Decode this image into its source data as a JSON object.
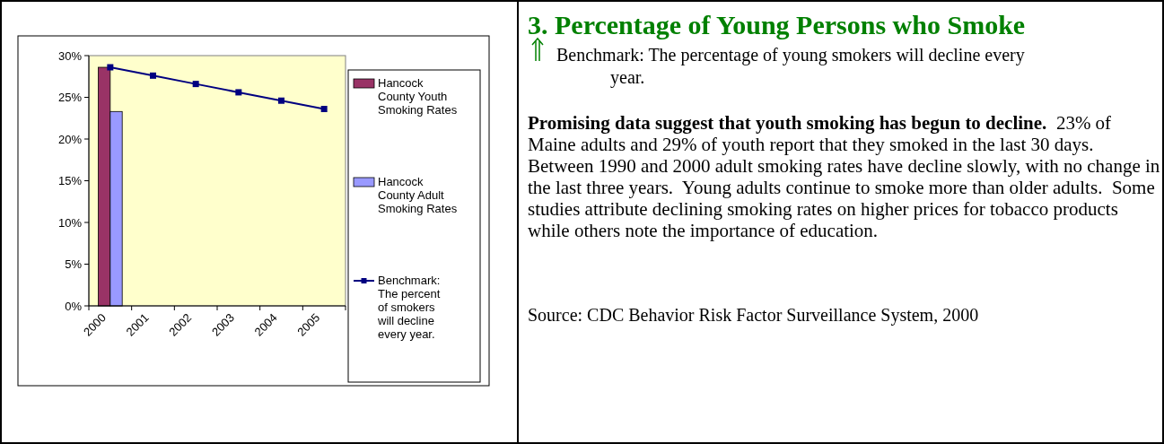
{
  "chart_data": {
    "type": "bar",
    "title": "3. Percentage of Young Persons who Smoke",
    "subtitle": "Benchmark: The percentage of young smokers will decline every year.",
    "categories": [
      "2000",
      "2001",
      "2002",
      "2003",
      "2004",
      "2005"
    ],
    "series": [
      {
        "name": "Hancock County Youth Smoking Rates",
        "color": "#993366",
        "values": [
          28.6,
          null,
          null,
          null,
          null,
          null
        ]
      },
      {
        "name": "Hancock County Adult Smoking Rates",
        "color": "#9999ff",
        "values": [
          23.3,
          null,
          null,
          null,
          null,
          null
        ]
      },
      {
        "name": "Benchmark: The percent of smokers will decline every year.",
        "type": "line",
        "color": "#000080",
        "marker": "square",
        "values": [
          28.6,
          27.6,
          26.6,
          25.6,
          24.6,
          23.6
        ]
      }
    ],
    "ylim": [
      0,
      30
    ],
    "yticks": [
      {
        "value": 0,
        "label": "0%"
      },
      {
        "value": 5,
        "label": "5%"
      },
      {
        "value": 10,
        "label": "10%"
      },
      {
        "value": 15,
        "label": "15%"
      },
      {
        "value": 20,
        "label": "20%"
      },
      {
        "value": 25,
        "label": "25%"
      },
      {
        "value": 30,
        "label": "30%"
      }
    ],
    "grid": false,
    "legend": "right",
    "annotations": [
      "Promising data suggest that youth smoking has begun to decline.",
      "23% of Maine adults and 29% of youth report that they smoked in the last 30 days.  Between 1990 and 2000 adult smoking rates have decline slowly, with no change in the last three years.  Young adults continue to smoke more than older adults.  Some studies attribute declining smoking rates on higher prices for tobacco products while others note the importance of education.",
      "Source: CDC Behavior Risk Factor Surveillance System, 2000"
    ]
  }
}
